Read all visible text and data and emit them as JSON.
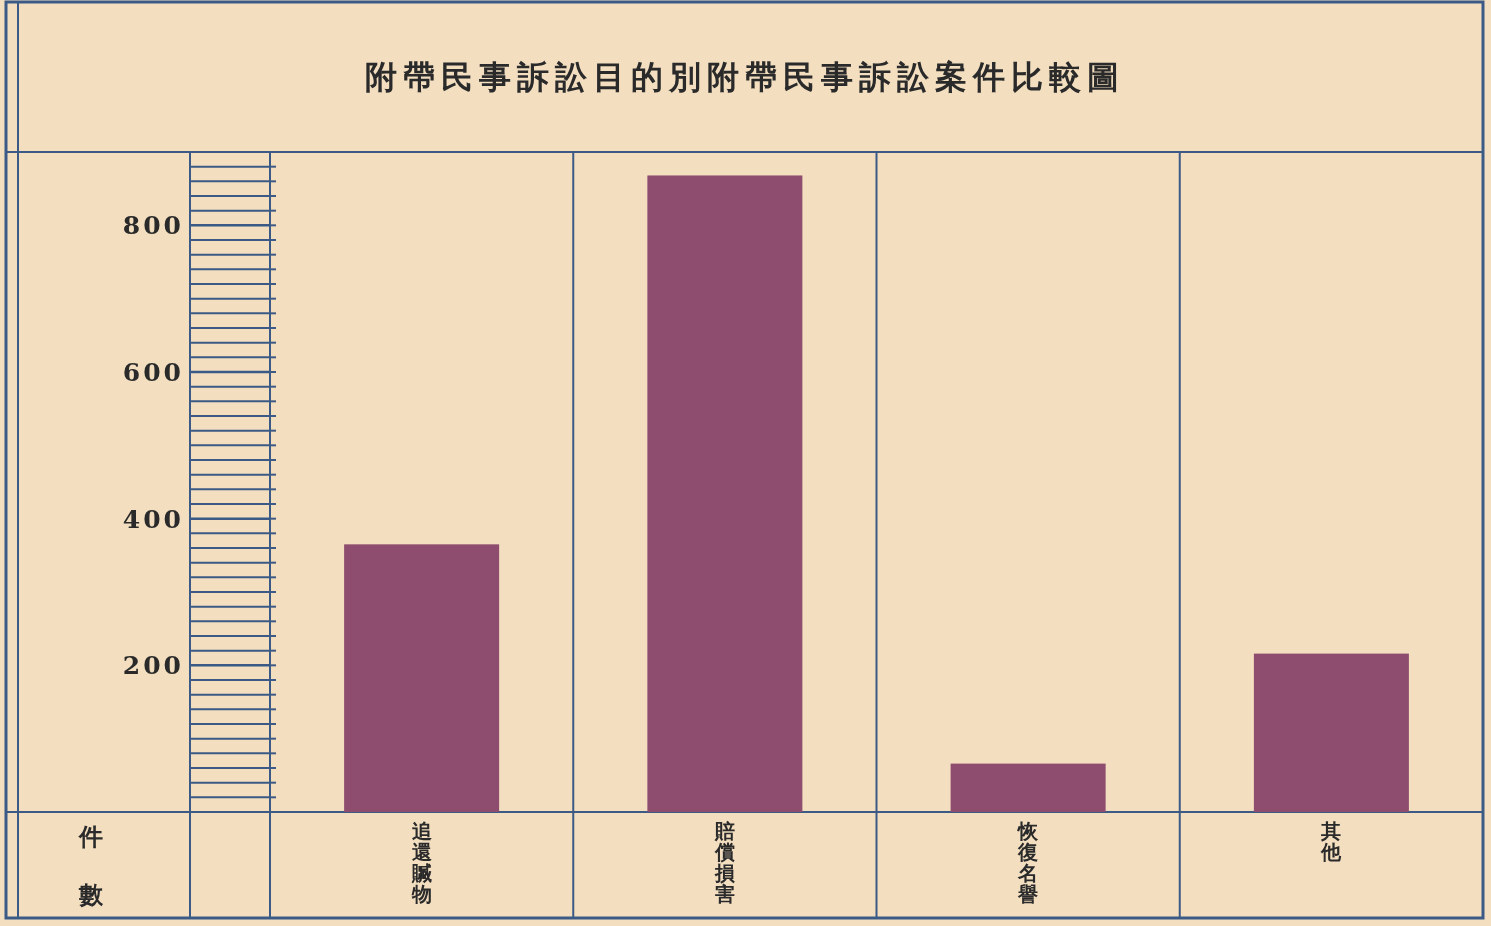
{
  "chart_data": {
    "type": "bar",
    "title": "附帶民事訴訟目的別附帶民事訴訟案件比較圖",
    "ylabel": "件數",
    "categories": [
      "追還贓物",
      "賠償損害",
      "恢復名譽",
      "其他"
    ],
    "values": [
      365,
      868,
      66,
      216
    ],
    "color": "#8e4c6e",
    "ylim": [
      0,
      900
    ],
    "yticks": [
      {
        "value": 20,
        "label": null
      },
      {
        "value": 40,
        "label": null
      },
      {
        "value": 60,
        "label": null
      },
      {
        "value": 80,
        "label": null
      },
      {
        "value": 100,
        "label": null
      },
      {
        "value": 120,
        "label": null
      },
      {
        "value": 140,
        "label": null
      },
      {
        "value": 160,
        "label": null
      },
      {
        "value": 180,
        "label": null
      },
      200,
      {
        "value": 220,
        "label": null
      },
      {
        "value": 240,
        "label": null
      },
      {
        "value": 260,
        "label": null
      },
      {
        "value": 280,
        "label": null
      },
      {
        "value": 300,
        "label": null
      },
      {
        "value": 320,
        "label": null
      },
      {
        "value": 340,
        "label": null
      },
      {
        "value": 360,
        "label": null
      },
      {
        "value": 380,
        "label": null
      },
      400,
      {
        "value": 420,
        "label": null
      },
      {
        "value": 440,
        "label": null
      },
      {
        "value": 460,
        "label": null
      },
      {
        "value": 480,
        "label": null
      },
      {
        "value": 500,
        "label": null
      },
      {
        "value": 520,
        "label": null
      },
      {
        "value": 540,
        "label": null
      },
      {
        "value": 560,
        "label": null
      },
      {
        "value": 580,
        "label": null
      },
      600,
      {
        "value": 620,
        "label": null
      },
      {
        "value": 640,
        "label": null
      },
      {
        "value": 660,
        "label": null
      },
      {
        "value": 680,
        "label": null
      },
      {
        "value": 700,
        "label": null
      },
      {
        "value": 720,
        "label": null
      },
      {
        "value": 740,
        "label": null
      },
      {
        "value": 760,
        "label": null
      },
      {
        "value": 780,
        "label": null
      },
      800,
      {
        "value": 820,
        "label": null
      },
      {
        "value": 840,
        "label": null
      },
      {
        "value": 860,
        "label": null
      },
      {
        "value": 880,
        "label": null
      }
    ]
  }
}
